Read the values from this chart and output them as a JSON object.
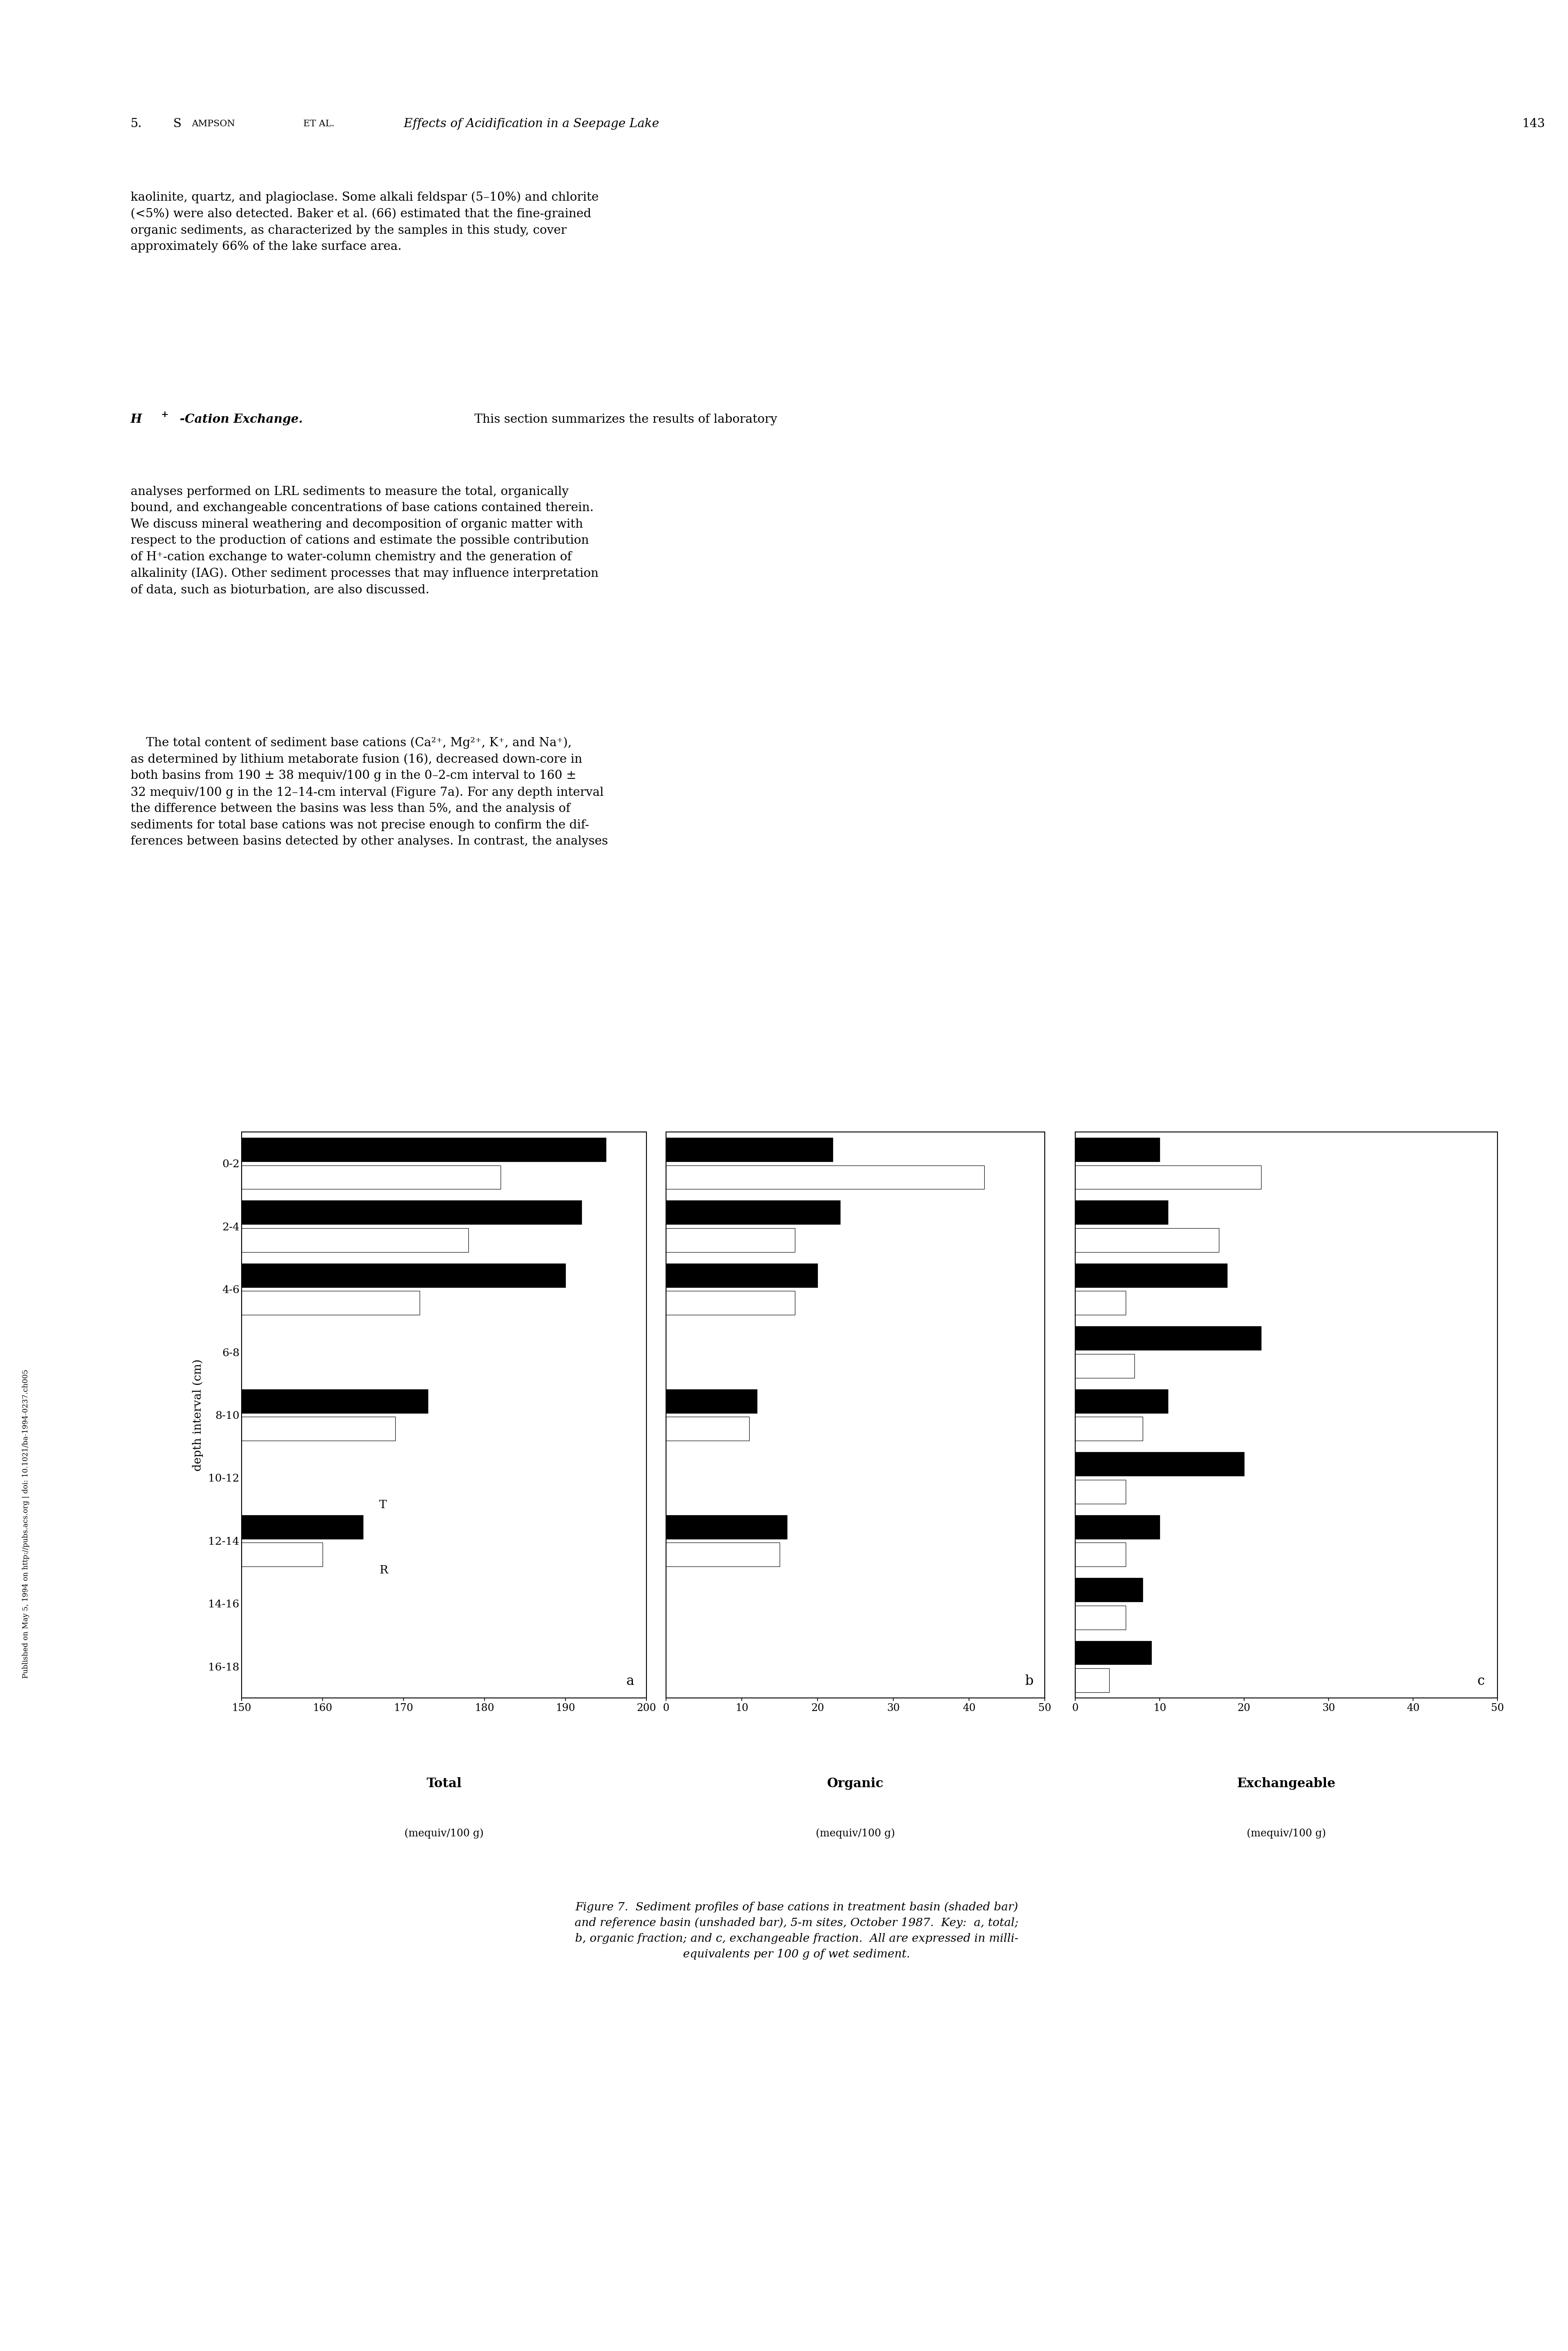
{
  "depth_labels": [
    "0-2",
    "2-4",
    "4-6",
    "6-8",
    "8-10",
    "10-12",
    "12-14",
    "14-16",
    "16-18"
  ],
  "panel_a": {
    "title": "Total",
    "xlabel": "(mequiv/100 g)",
    "label": "a",
    "xlim": [
      150,
      200
    ],
    "xticks": [
      150,
      160,
      170,
      180,
      190,
      200
    ],
    "treatment": [
      195,
      192,
      190,
      null,
      173,
      null,
      165,
      null,
      null
    ],
    "reference": [
      182,
      178,
      172,
      null,
      169,
      null,
      160,
      null,
      null
    ]
  },
  "panel_b": {
    "title": "Organic",
    "xlabel": "(mequiv/100 g)",
    "label": "b",
    "xlim": [
      0,
      50
    ],
    "xticks": [
      0,
      10,
      20,
      30,
      40,
      50
    ],
    "treatment": [
      22,
      23,
      20,
      null,
      12,
      null,
      16,
      null,
      null
    ],
    "reference": [
      42,
      17,
      17,
      null,
      11,
      null,
      15,
      null,
      null
    ]
  },
  "panel_c": {
    "title": "Exchangeable",
    "xlabel": "(mequiv/100 g)",
    "label": "c",
    "xlim": [
      0,
      50
    ],
    "xticks": [
      0,
      10,
      20,
      30,
      40,
      50
    ],
    "treatment": [
      10,
      11,
      18,
      22,
      11,
      20,
      10,
      8,
      9
    ],
    "reference": [
      22,
      17,
      6,
      7,
      8,
      6,
      6,
      6,
      4
    ]
  },
  "treatment_color": "#000000",
  "reference_color": "#ffffff",
  "sidebar_text": "Published on May 5, 1994 on http://pubs.acs.org | doi: 10.1021/ba-1994-0237.ch005"
}
